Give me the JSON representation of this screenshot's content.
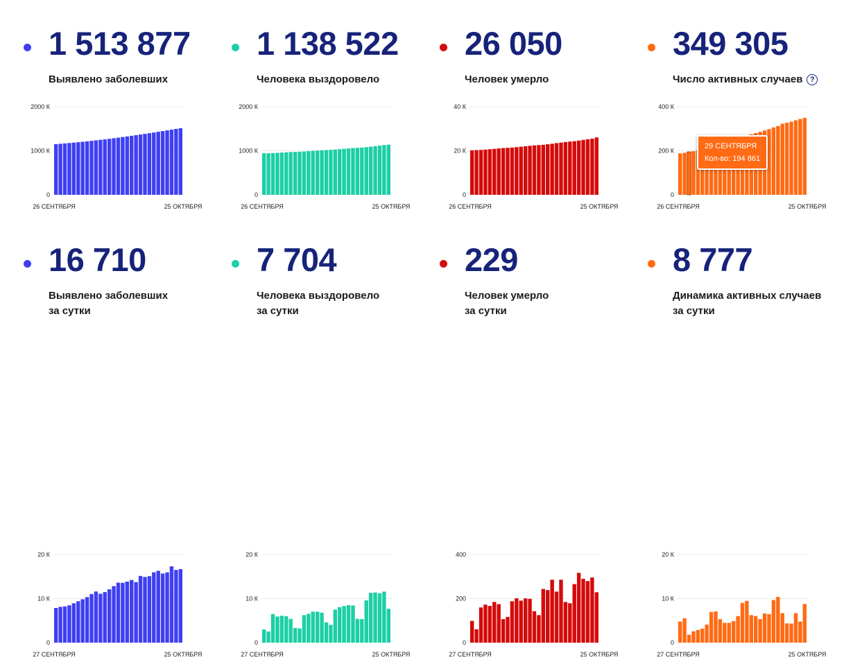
{
  "colors": {
    "blue": "#3f3ff2",
    "teal": "#1ccfa4",
    "red": "#d50a0a",
    "orange": "#ff6b14",
    "headline": "#17237a"
  },
  "cards": [
    {
      "big": "1 513 877",
      "label1": "Выявлено заболевших",
      "label2": "",
      "color": "blue"
    },
    {
      "big": "1 138 522",
      "label1": "Человека выздоровело",
      "label2": "",
      "color": "teal"
    },
    {
      "big": "26 050",
      "label1": "Человек умерло",
      "label2": "",
      "color": "red"
    },
    {
      "big": "349 305",
      "label1": "Число активных случаев",
      "label2": "",
      "color": "orange",
      "help": "?"
    },
    {
      "big": "16 710",
      "label1": "Выявлено заболевших",
      "label2": "за сутки",
      "color": "blue"
    },
    {
      "big": "7 704",
      "label1": "Человека выздоровело",
      "label2": "за сутки",
      "color": "teal"
    },
    {
      "big": "229",
      "label1": "Человек умерло",
      "label2": "за сутки",
      "color": "red"
    },
    {
      "big": "8 777",
      "label1": "Динамика активных случаев",
      "label2": "за сутки",
      "color": "orange"
    }
  ],
  "tooltip": {
    "date": "29 СЕНТЯБРЯ",
    "value": "Кол-во: 194 861"
  },
  "chart_data": [
    {
      "type": "bar",
      "color": "blue",
      "ymax": 2000000,
      "yticks": [
        "2000 К",
        "1000 К",
        "0"
      ],
      "xstart": "26 СЕНТЯБРЯ",
      "xend": "25 ОКТЯБРЯ",
      "values": [
        1151438,
        1159573,
        1167805,
        1176286,
        1185231,
        1194643,
        1204502,
        1214849,
        1225889,
        1237504,
        1248619,
        1260112,
        1272238,
        1285084,
        1298718,
        1312310,
        1326178,
        1340409,
        1354163,
        1369313,
        1384235,
        1399334,
        1415316,
        1431635,
        1447335,
        1463306,
        1480646,
        1497167,
        1513877
      ]
    },
    {
      "type": "bar",
      "color": "teal",
      "ymax": 2000000,
      "yticks": [
        "2000 К",
        "1000 К",
        "0"
      ],
      "xstart": "26 СЕНТЯБРЯ",
      "xend": "25 ОКТЯБРЯ",
      "values": [
        942978,
        945520,
        948154,
        954092,
        960021,
        966139,
        972150,
        975465,
        978802,
        985046,
        991597,
        998645,
        1005695,
        1012506,
        1017112,
        1021159,
        1028678,
        1036747,
        1045067,
        1053581,
        1062036,
        1067450,
        1072800,
        1082408,
        1093734,
        1105128,
        1116703,
        1130818,
        1138522
      ]
    },
    {
      "type": "bar",
      "color": "red",
      "ymax": 40000,
      "yticks": [
        "40 К",
        "20 К",
        "0"
      ],
      "xstart": "26 СЕНТЯБРЯ",
      "xend": "25 ОКТЯБРЯ",
      "values": [
        20225,
        20324,
        20385,
        20545,
        20718,
        20891,
        21076,
        21251,
        21358,
        21475,
        21663,
        21865,
        22056,
        22257,
        22454,
        22597,
        22722,
        22966,
        23205,
        23491,
        23723,
        24002,
        24187,
        24366,
        24635,
        24952,
        25242,
        25525,
        26050
      ]
    },
    {
      "type": "bar",
      "color": "orange",
      "ymax": 400000,
      "yticks": [
        "400 К",
        "200 К",
        "0"
      ],
      "xstart": "26 СЕНТЯБРЯ",
      "xend": "25 ОКТЯБРЯ",
      "values": [
        188235,
        190929,
        194861,
        198000,
        202500,
        207613,
        211276,
        218133,
        225729,
        230983,
        235359,
        239602,
        244487,
        250321,
        259152,
        268554,
        274778,
        280696,
        285891,
        292241,
        298476,
        305882,
        312329,
        322861,
        327266,
        332200,
        338700,
        344400,
        349305
      ],
      "highlight_index": 2
    },
    {
      "type": "bar",
      "color": "blue",
      "ymax": 20000,
      "yticks": [
        "20 К",
        "10 К",
        "0"
      ],
      "xstart": "27 СЕНТЯБРЯ",
      "xend": "25 ОКТЯБРЯ",
      "values": [
        7867,
        8135,
        8232,
        8481,
        8945,
        9412,
        9859,
        10347,
        11045,
        11615,
        11115,
        11493,
        12126,
        12846,
        13634,
        13592,
        13868,
        14231,
        13754,
        15150,
        14922,
        15099,
        15982,
        16319,
        15700,
        15971,
        17340,
        16521,
        16710
      ]
    },
    {
      "type": "bar",
      "color": "teal",
      "ymax": 20000,
      "yticks": [
        "20 К",
        "10 К",
        "0"
      ],
      "xstart": "27 СЕНТЯБРЯ",
      "xend": "25 ОКТЯБРЯ",
      "values": [
        2998,
        2542,
        6500,
        5938,
        6118,
        6011,
        5400,
        3337,
        3244,
        6244,
        6551,
        7048,
        7050,
        6811,
        4606,
        4047,
        7519,
        8069,
        8320,
        8514,
        8455,
        5414,
        5350,
        9608,
        11326,
        11394,
        11200,
        11600,
        7704
      ]
    },
    {
      "type": "bar",
      "color": "red",
      "ymax": 400,
      "yticks": [
        "400",
        "200",
        "0"
      ],
      "xstart": "27 СЕНТЯБРЯ",
      "xend": "25 ОКТЯБРЯ",
      "values": [
        99,
        61,
        160,
        173,
        167,
        185,
        175,
        107,
        117,
        188,
        202,
        191,
        201,
        199,
        143,
        125,
        244,
        239,
        286,
        232,
        286,
        185,
        179,
        266,
        317,
        290,
        280,
        296,
        229
      ]
    },
    {
      "type": "bar",
      "color": "orange",
      "ymax": 20000,
      "yticks": [
        "20 К",
        "10 К",
        "0"
      ],
      "xstart": "27 СЕНТЯБРЯ",
      "xend": "25 ОКТЯБРЯ",
      "values": [
        4800,
        5536,
        1794,
        2571,
        2879,
        3189,
        4100,
        6980,
        7096,
        5332,
        4500,
        4500,
        4900,
        6035,
        9028,
        9487,
        6249,
        6030,
        5346,
        6636,
        6467,
        9685,
        10400,
        6711,
        4374,
        4332,
        6700,
        4800,
        8777
      ]
    }
  ]
}
